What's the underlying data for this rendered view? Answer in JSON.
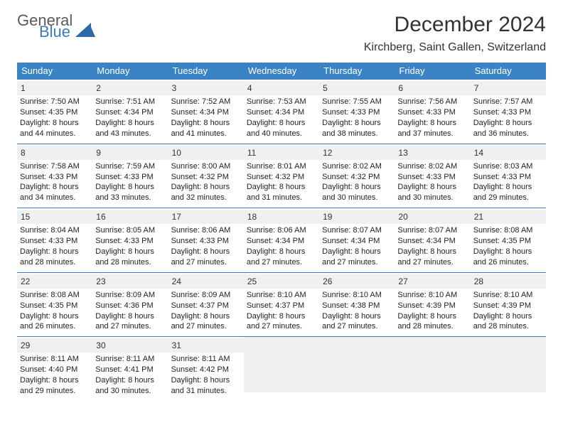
{
  "logo": {
    "top": "General",
    "bottom": "Blue",
    "shape_color": "#2f6aa8"
  },
  "title": "December 2024",
  "subtitle": "Kirchberg, Saint Gallen, Switzerland",
  "colors": {
    "header_bg": "#3a84c5",
    "header_text": "#ffffff",
    "row_border": "#3a7bbf",
    "daynum_bg": "#eef0f2",
    "empty_bg": "#f0f0f0",
    "text": "#222222"
  },
  "dayHeaders": [
    "Sunday",
    "Monday",
    "Tuesday",
    "Wednesday",
    "Thursday",
    "Friday",
    "Saturday"
  ],
  "weeks": [
    [
      {
        "n": "1",
        "sr": "7:50 AM",
        "ss": "4:35 PM",
        "dh": "8",
        "dm": "44"
      },
      {
        "n": "2",
        "sr": "7:51 AM",
        "ss": "4:34 PM",
        "dh": "8",
        "dm": "43"
      },
      {
        "n": "3",
        "sr": "7:52 AM",
        "ss": "4:34 PM",
        "dh": "8",
        "dm": "41"
      },
      {
        "n": "4",
        "sr": "7:53 AM",
        "ss": "4:34 PM",
        "dh": "8",
        "dm": "40"
      },
      {
        "n": "5",
        "sr": "7:55 AM",
        "ss": "4:33 PM",
        "dh": "8",
        "dm": "38"
      },
      {
        "n": "6",
        "sr": "7:56 AM",
        "ss": "4:33 PM",
        "dh": "8",
        "dm": "37"
      },
      {
        "n": "7",
        "sr": "7:57 AM",
        "ss": "4:33 PM",
        "dh": "8",
        "dm": "36"
      }
    ],
    [
      {
        "n": "8",
        "sr": "7:58 AM",
        "ss": "4:33 PM",
        "dh": "8",
        "dm": "34"
      },
      {
        "n": "9",
        "sr": "7:59 AM",
        "ss": "4:33 PM",
        "dh": "8",
        "dm": "33"
      },
      {
        "n": "10",
        "sr": "8:00 AM",
        "ss": "4:32 PM",
        "dh": "8",
        "dm": "32"
      },
      {
        "n": "11",
        "sr": "8:01 AM",
        "ss": "4:32 PM",
        "dh": "8",
        "dm": "31"
      },
      {
        "n": "12",
        "sr": "8:02 AM",
        "ss": "4:32 PM",
        "dh": "8",
        "dm": "30"
      },
      {
        "n": "13",
        "sr": "8:02 AM",
        "ss": "4:33 PM",
        "dh": "8",
        "dm": "30"
      },
      {
        "n": "14",
        "sr": "8:03 AM",
        "ss": "4:33 PM",
        "dh": "8",
        "dm": "29"
      }
    ],
    [
      {
        "n": "15",
        "sr": "8:04 AM",
        "ss": "4:33 PM",
        "dh": "8",
        "dm": "28"
      },
      {
        "n": "16",
        "sr": "8:05 AM",
        "ss": "4:33 PM",
        "dh": "8",
        "dm": "28"
      },
      {
        "n": "17",
        "sr": "8:06 AM",
        "ss": "4:33 PM",
        "dh": "8",
        "dm": "27"
      },
      {
        "n": "18",
        "sr": "8:06 AM",
        "ss": "4:34 PM",
        "dh": "8",
        "dm": "27"
      },
      {
        "n": "19",
        "sr": "8:07 AM",
        "ss": "4:34 PM",
        "dh": "8",
        "dm": "27"
      },
      {
        "n": "20",
        "sr": "8:07 AM",
        "ss": "4:34 PM",
        "dh": "8",
        "dm": "27"
      },
      {
        "n": "21",
        "sr": "8:08 AM",
        "ss": "4:35 PM",
        "dh": "8",
        "dm": "26"
      }
    ],
    [
      {
        "n": "22",
        "sr": "8:08 AM",
        "ss": "4:35 PM",
        "dh": "8",
        "dm": "26"
      },
      {
        "n": "23",
        "sr": "8:09 AM",
        "ss": "4:36 PM",
        "dh": "8",
        "dm": "27"
      },
      {
        "n": "24",
        "sr": "8:09 AM",
        "ss": "4:37 PM",
        "dh": "8",
        "dm": "27"
      },
      {
        "n": "25",
        "sr": "8:10 AM",
        "ss": "4:37 PM",
        "dh": "8",
        "dm": "27"
      },
      {
        "n": "26",
        "sr": "8:10 AM",
        "ss": "4:38 PM",
        "dh": "8",
        "dm": "27"
      },
      {
        "n": "27",
        "sr": "8:10 AM",
        "ss": "4:39 PM",
        "dh": "8",
        "dm": "28"
      },
      {
        "n": "28",
        "sr": "8:10 AM",
        "ss": "4:39 PM",
        "dh": "8",
        "dm": "28"
      }
    ],
    [
      {
        "n": "29",
        "sr": "8:11 AM",
        "ss": "4:40 PM",
        "dh": "8",
        "dm": "29"
      },
      {
        "n": "30",
        "sr": "8:11 AM",
        "ss": "4:41 PM",
        "dh": "8",
        "dm": "30"
      },
      {
        "n": "31",
        "sr": "8:11 AM",
        "ss": "4:42 PM",
        "dh": "8",
        "dm": "31"
      },
      null,
      null,
      null,
      null
    ]
  ],
  "labels": {
    "sunrise": "Sunrise:",
    "sunset": "Sunset:",
    "daylight": "Daylight:",
    "hours": "hours",
    "and": "and",
    "minutes": "minutes."
  }
}
